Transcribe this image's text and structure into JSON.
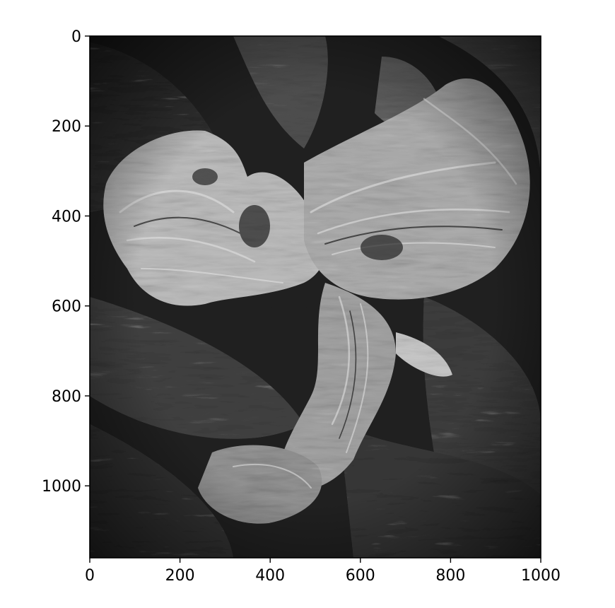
{
  "image": {
    "description_icon": "gnarled-tree-wood-photo-icon",
    "palette": {
      "dark": "#111111",
      "mid": "#4a4a4a",
      "light": "#c9c9c9",
      "highlight": "#e6e6e6",
      "axis": "#000000",
      "background": "#ffffff"
    }
  },
  "axes": {
    "x_ticks": [
      "0",
      "200",
      "400",
      "600",
      "800",
      "1000"
    ],
    "y_ticks": [
      "0",
      "200",
      "400",
      "600",
      "800",
      "1000"
    ],
    "x_tick_values": [
      0,
      200,
      400,
      600,
      800,
      1000
    ],
    "y_tick_values": [
      0,
      200,
      400,
      600,
      800,
      1000
    ],
    "xlim": [
      0,
      1000
    ],
    "ylim": [
      1160,
      0
    ],
    "grid": false
  }
}
